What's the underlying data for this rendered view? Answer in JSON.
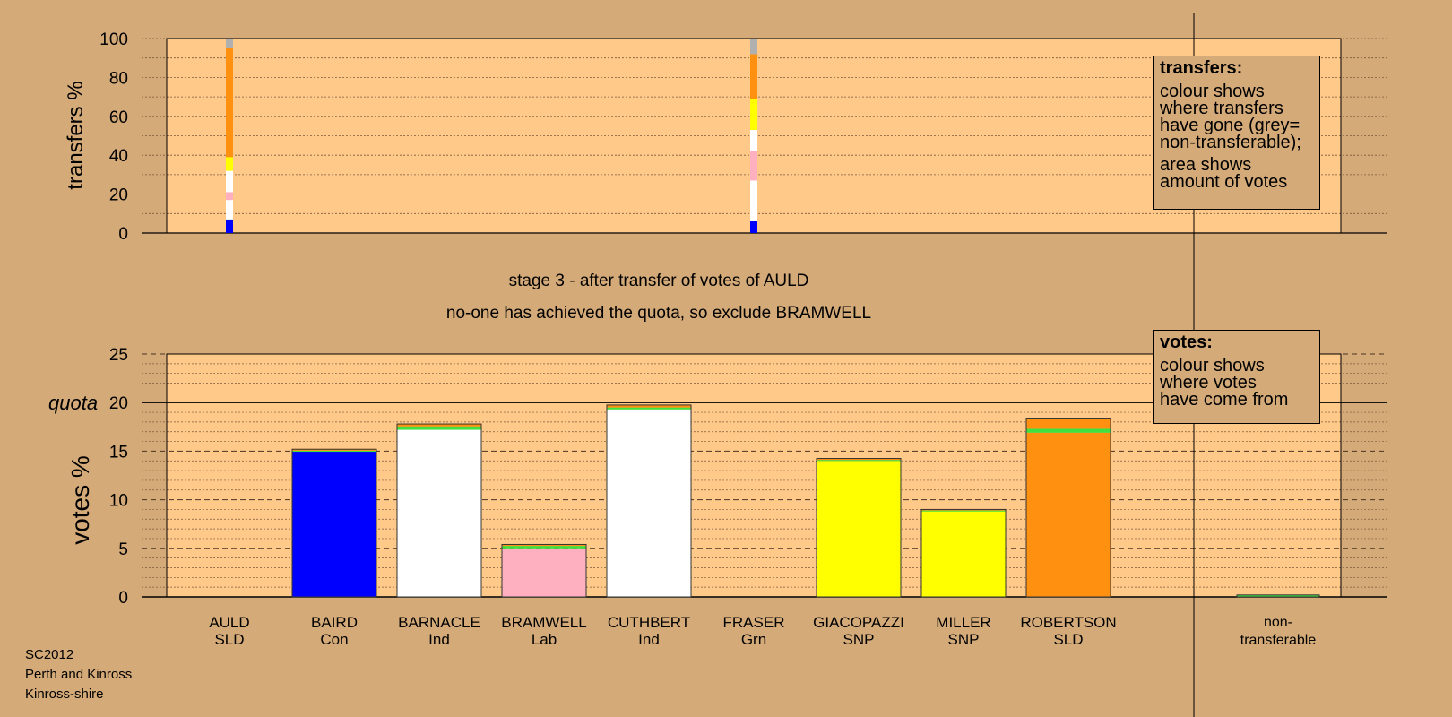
{
  "chart_data": {
    "type": "bar",
    "top_panel": {
      "ylabel": "transfers %",
      "ylim": [
        0,
        100
      ],
      "yticks": [
        0,
        20,
        40,
        60,
        80,
        100
      ],
      "columns": [
        {
          "candidate": "AULD",
          "segments": [
            {
              "color": "#0000ff",
              "value": 7
            },
            {
              "color": "#ffffff",
              "value": 10
            },
            {
              "color": "#ffb0c0",
              "value": 4
            },
            {
              "color": "#ffffff",
              "value": 11
            },
            {
              "color": "#ffff00",
              "value": 7
            },
            {
              "color": "#ff9010",
              "value": 56
            },
            {
              "color": "#b0b0b0",
              "value": 5
            }
          ]
        },
        {
          "candidate": "FRASER",
          "segments": [
            {
              "color": "#0000ff",
              "value": 6
            },
            {
              "color": "#ffffff",
              "value": 21
            },
            {
              "color": "#ffb0c0",
              "value": 15
            },
            {
              "color": "#ffffff",
              "value": 11
            },
            {
              "color": "#ffff00",
              "value": 16
            },
            {
              "color": "#ff9010",
              "value": 23
            },
            {
              "color": "#b0b0b0",
              "value": 8
            }
          ]
        }
      ]
    },
    "title_line1": "stage 3 - after transfer of votes of AULD",
    "title_line2": "no-one has achieved the quota, so exclude BRAMWELL",
    "bottom_panel": {
      "ylabel": "votes %",
      "ylim": [
        0,
        25
      ],
      "yticks": [
        0,
        5,
        10,
        15,
        20,
        25
      ],
      "quota": 20,
      "quota_label": "quota",
      "categories": [
        {
          "name": "AULD",
          "party": "SLD",
          "segments": []
        },
        {
          "name": "BAIRD",
          "party": "Con",
          "segments": [
            {
              "color": "#0000ff",
              "value": 15.0
            },
            {
              "color": "#40e040",
              "value": 0.05
            },
            {
              "color": "#ff9010",
              "value": 0.15
            }
          ]
        },
        {
          "name": "BARNACLE",
          "party": "Ind",
          "segments": [
            {
              "color": "#ffffff",
              "value": 17.2
            },
            {
              "color": "#40e040",
              "value": 0.35
            },
            {
              "color": "#ff9010",
              "value": 0.25
            }
          ]
        },
        {
          "name": "BRAMWELL",
          "party": "Lab",
          "segments": [
            {
              "color": "#ffb0c0",
              "value": 5.0
            },
            {
              "color": "#40e040",
              "value": 0.25
            },
            {
              "color": "#ff9010",
              "value": 0.15
            }
          ]
        },
        {
          "name": "CUTHBERT",
          "party": "Ind",
          "segments": [
            {
              "color": "#ffffff",
              "value": 19.3
            },
            {
              "color": "#40e040",
              "value": 0.2
            },
            {
              "color": "#ff9010",
              "value": 0.25
            }
          ]
        },
        {
          "name": "FRASER",
          "party": "Grn",
          "segments": []
        },
        {
          "name": "GIACOPAZZI",
          "party": "SNP",
          "segments": [
            {
              "color": "#ffff00",
              "value": 14.0
            },
            {
              "color": "#40e040",
              "value": 0.1
            },
            {
              "color": "#ff9010",
              "value": 0.15
            }
          ]
        },
        {
          "name": "MILLER",
          "party": "SNP",
          "segments": [
            {
              "color": "#ffff00",
              "value": 8.8
            },
            {
              "color": "#40e040",
              "value": 0.1
            },
            {
              "color": "#ff9010",
              "value": 0.1
            }
          ]
        },
        {
          "name": "ROBERTSON",
          "party": "SLD",
          "segments": [
            {
              "color": "#ff9010",
              "value": 16.9
            },
            {
              "color": "#40e040",
              "value": 0.4
            },
            {
              "color": "#ff9010",
              "value": 1.1
            }
          ]
        }
      ],
      "nontransferable": {
        "label_line1": "non-",
        "label_line2": "transferable",
        "value": 0.2,
        "color": "#40e040"
      }
    }
  },
  "legends": {
    "transfers": {
      "title": "transfers:",
      "lines1": [
        "colour shows",
        "where transfers",
        "have gone (grey=",
        "non-transferable);"
      ],
      "lines2": [
        "area shows",
        "amount of votes"
      ]
    },
    "votes": {
      "title": "votes:",
      "lines1": [
        "colour shows",
        "where votes",
        "have come from"
      ]
    }
  },
  "footer": {
    "line1": "SC2012",
    "line2": "Perth and Kinross",
    "line3": "Kinross-shire"
  },
  "colors": {
    "background": "#d4aa78",
    "plot_background": "#ffc98a"
  }
}
